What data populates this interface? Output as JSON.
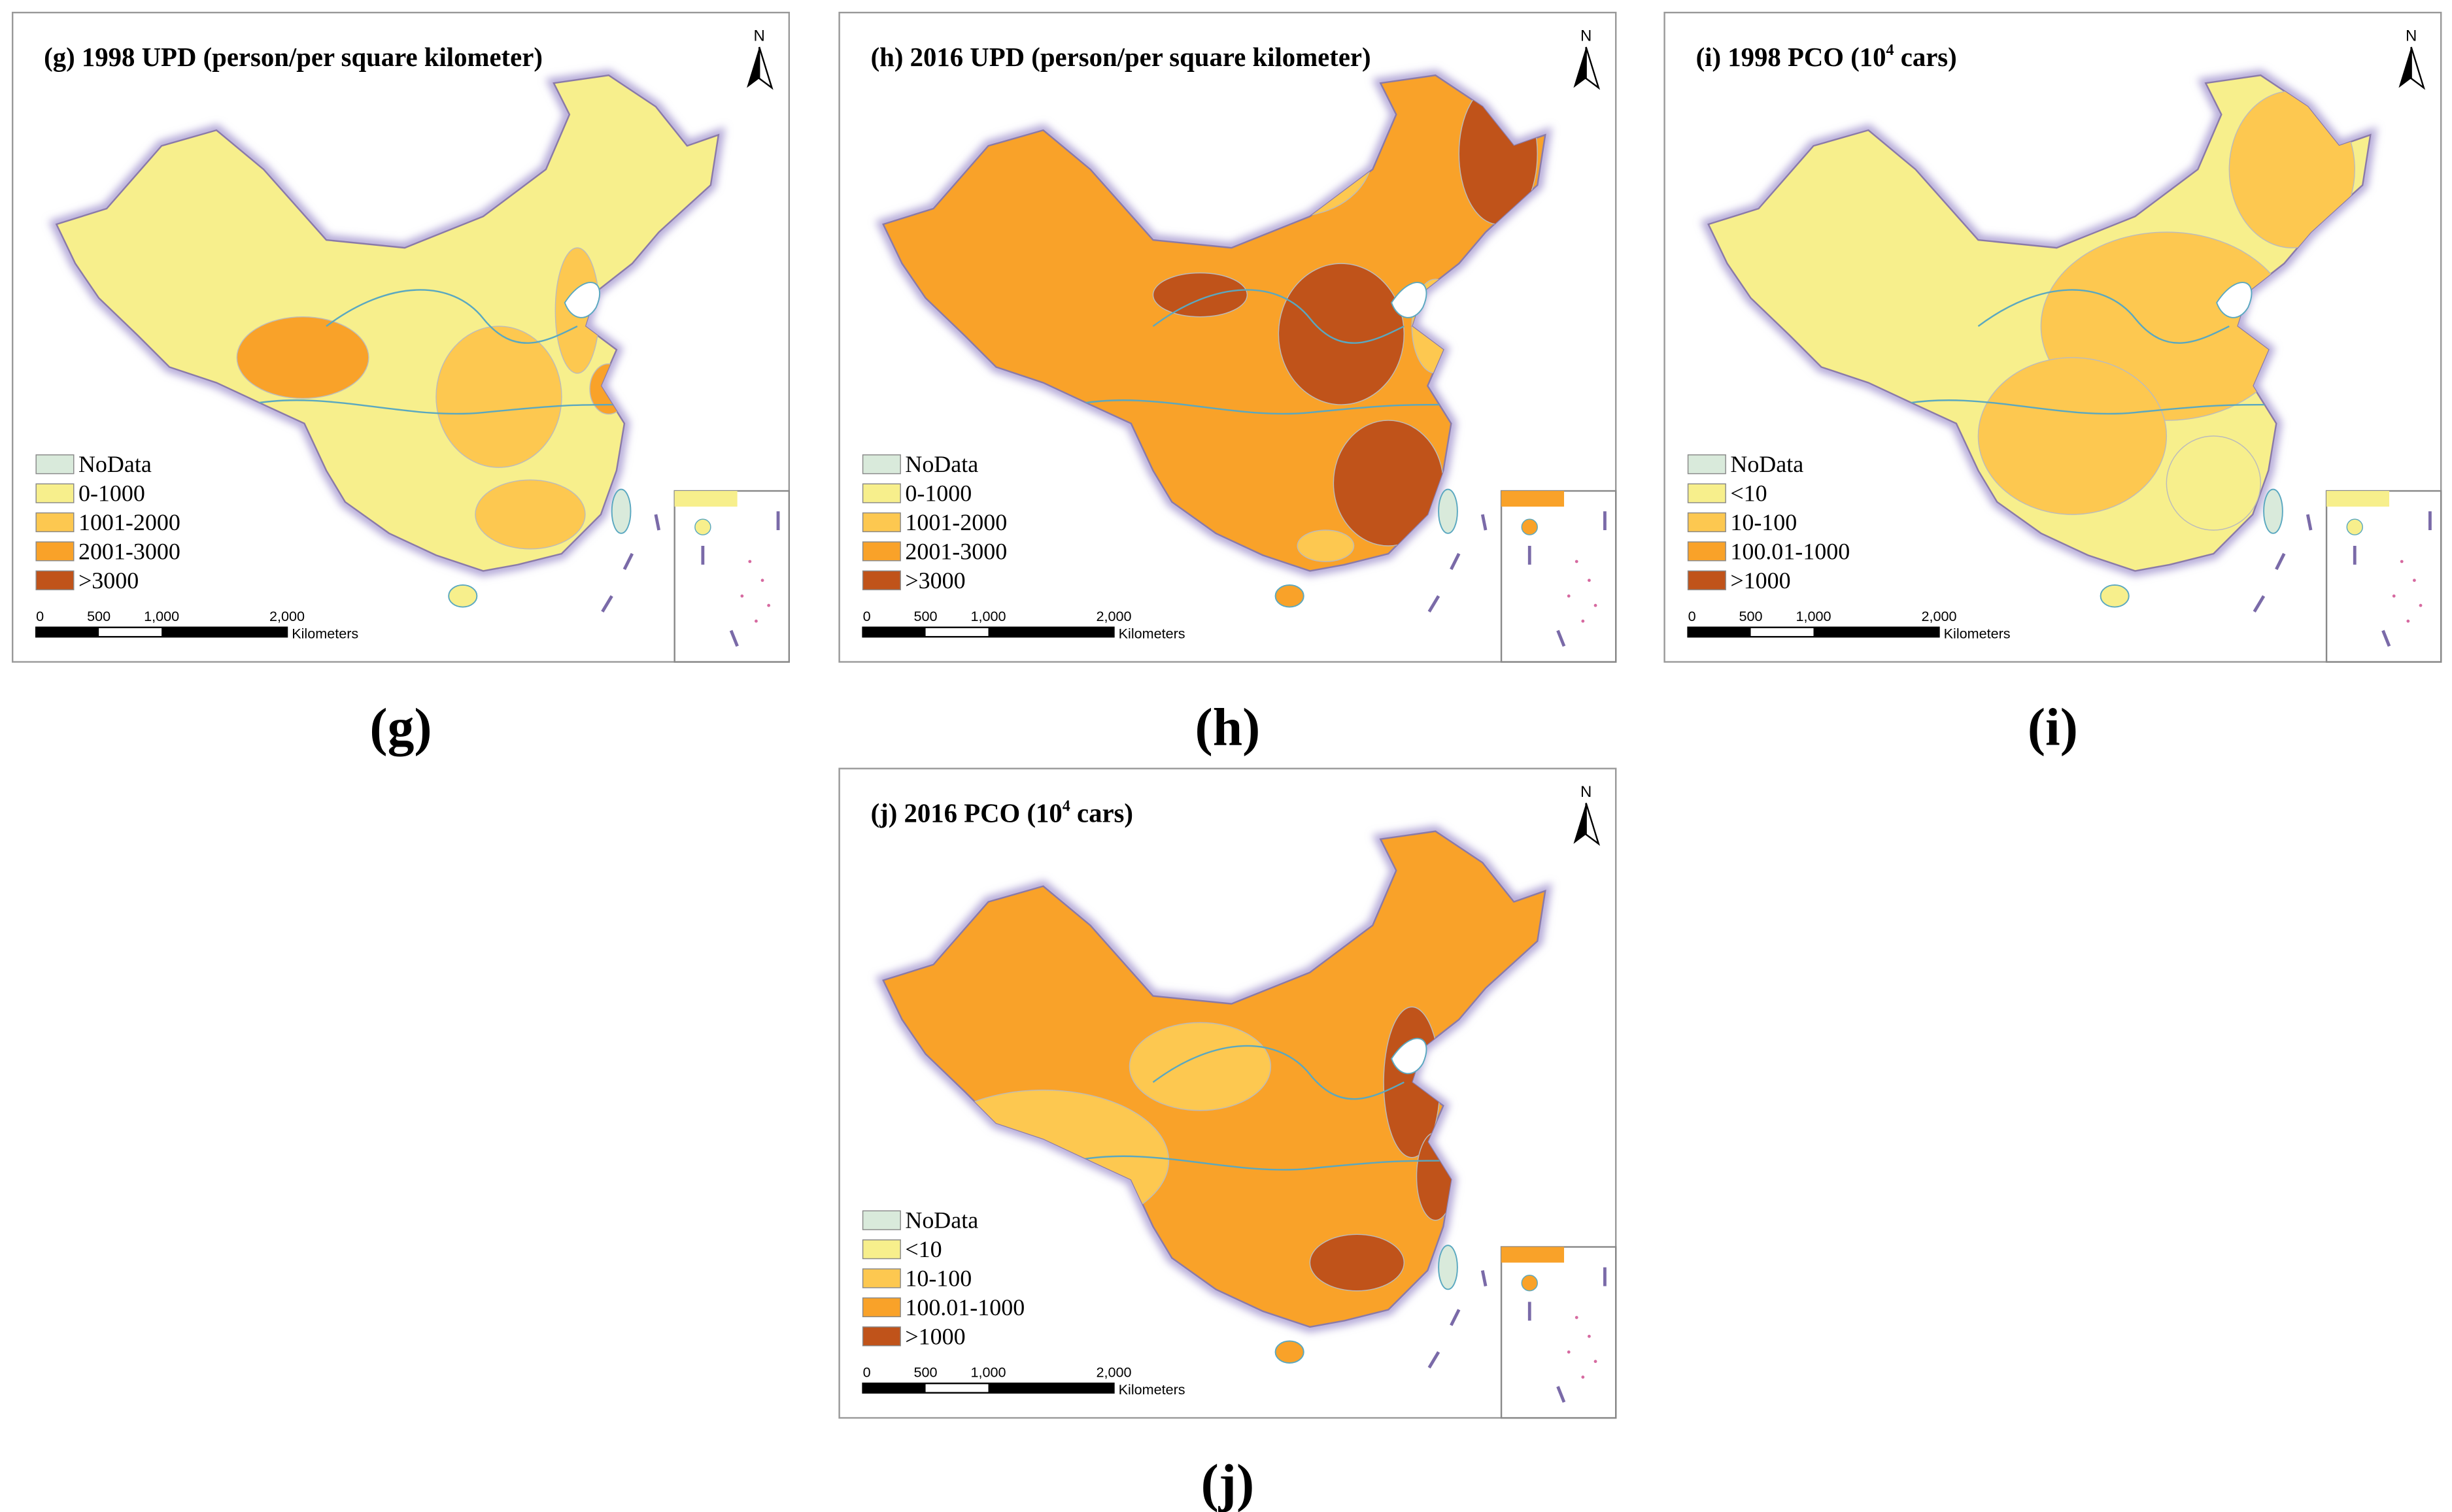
{
  "panels": [
    {
      "title_parts": [
        "(g) 1998 UPD (person/per square kilometer)"
      ],
      "caption": "(g)",
      "north": "N",
      "legend": [
        "NoData",
        "0-1000",
        "1001-2000",
        "2001-3000",
        ">3000"
      ],
      "scale": [
        "0",
        "500",
        "1,000",
        "2,000"
      ],
      "unit": "Kilometers"
    },
    {
      "title_parts": [
        "(h) 2016 UPD (person/per square kilometer)"
      ],
      "caption": "(h)",
      "north": "N",
      "legend": [
        "NoData",
        "0-1000",
        "1001-2000",
        "2001-3000",
        ">3000"
      ],
      "scale": [
        "0",
        "500",
        "1,000",
        "2,000"
      ],
      "unit": "Kilometers"
    },
    {
      "title_parts": [
        "(i) 1998 PCO (10",
        "4",
        " cars)"
      ],
      "caption": "(i)",
      "north": "N",
      "legend": [
        "NoData",
        "<10",
        "10-100",
        "100.01-1000",
        ">1000"
      ],
      "scale": [
        "0",
        "500",
        "1,000",
        "2,000"
      ],
      "unit": "Kilometers"
    },
    {
      "title_parts": [
        "(j) 2016 PCO (10",
        "4",
        " cars)"
      ],
      "caption": "(j)",
      "north": "N",
      "legend": [
        "NoData",
        "<10",
        "10-100",
        "100.01-1000",
        ">1000"
      ],
      "scale": [
        "0",
        "500",
        "1,000",
        "2,000"
      ],
      "unit": "Kilometers"
    }
  ]
}
